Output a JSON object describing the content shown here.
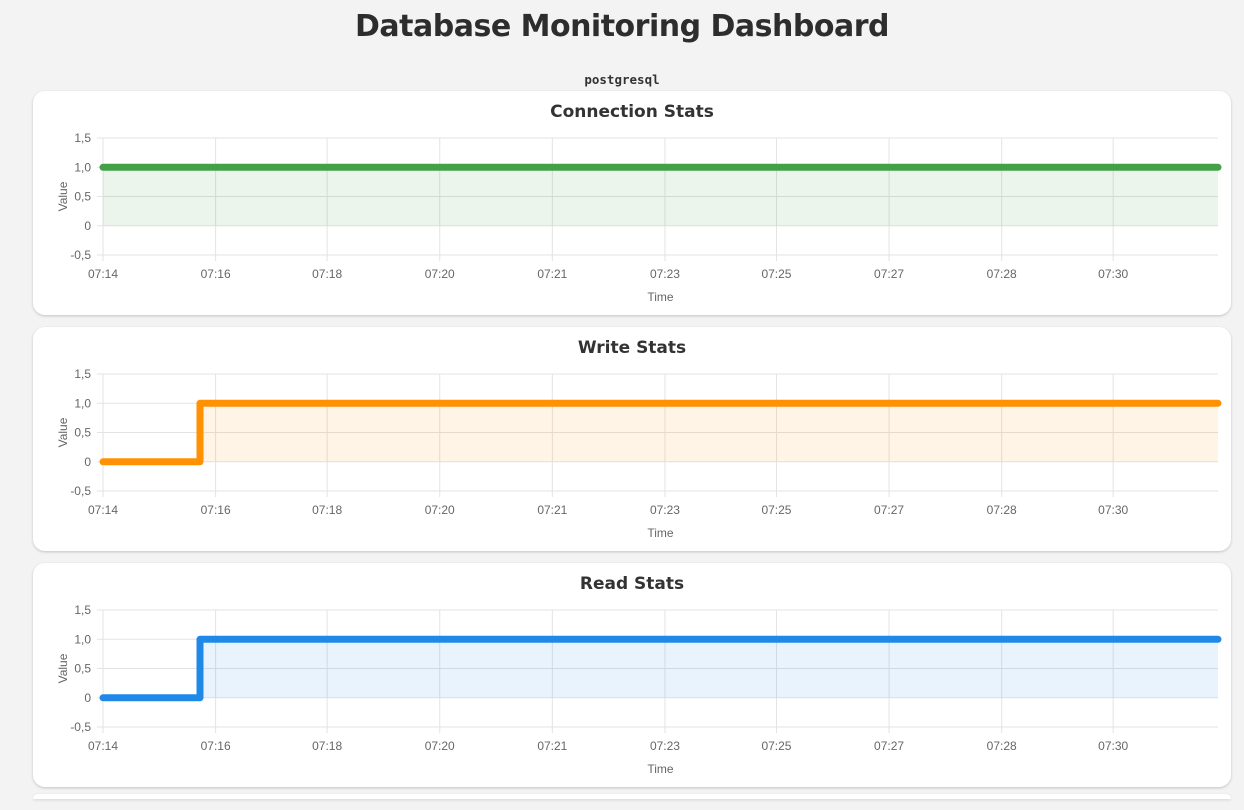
{
  "header": {
    "title": "Database Monitoring Dashboard",
    "legend_label": "postgresql"
  },
  "colors": {
    "page_bg": "#f3f3f3",
    "card_bg": "#ffffff",
    "grid": "#e3e3e3",
    "tick_text": "#666666",
    "heading_text": "#333333",
    "connection_line": "#43a047",
    "write_line": "#ff9102",
    "read_line": "#2089e8"
  },
  "chart_data": [
    {
      "type": "line",
      "title": "Connection Stats",
      "xlabel": "Time",
      "ylabel": "Value",
      "ylim": [
        -0.5,
        1.5
      ],
      "legend": "postgresql",
      "x_ticks": [
        {
          "label": "07:14",
          "pos": 0
        },
        {
          "label": "07:16",
          "pos": 0.101
        },
        {
          "label": "07:18",
          "pos": 0.201
        },
        {
          "label": "07:20",
          "pos": 0.302
        },
        {
          "label": "07:21",
          "pos": 0.403
        },
        {
          "label": "07:23",
          "pos": 0.504
        },
        {
          "label": "07:25",
          "pos": 0.604
        },
        {
          "label": "07:27",
          "pos": 0.705
        },
        {
          "label": "07:28",
          "pos": 0.806
        },
        {
          "label": "07:30",
          "pos": 0.906
        }
      ],
      "y_ticks": [
        {
          "label": "1,5",
          "value": 1.5
        },
        {
          "label": "1,0",
          "value": 1.0
        },
        {
          "label": "0,5",
          "value": 0.5
        },
        {
          "label": "0",
          "value": 0
        },
        {
          "label": "-0,5",
          "value": -0.5
        }
      ],
      "series": [
        {
          "name": "postgresql",
          "color": "#43a047",
          "fill_color": "rgba(67,160,71,0.10)",
          "points": [
            [
              0,
              1
            ],
            [
              1,
              1
            ]
          ]
        }
      ]
    },
    {
      "type": "line",
      "title": "Write Stats",
      "xlabel": "Time",
      "ylabel": "Value",
      "ylim": [
        -0.5,
        1.5
      ],
      "legend": "postgresql",
      "x_ticks": [
        {
          "label": "07:14",
          "pos": 0
        },
        {
          "label": "07:16",
          "pos": 0.101
        },
        {
          "label": "07:18",
          "pos": 0.201
        },
        {
          "label": "07:20",
          "pos": 0.302
        },
        {
          "label": "07:21",
          "pos": 0.403
        },
        {
          "label": "07:23",
          "pos": 0.504
        },
        {
          "label": "07:25",
          "pos": 0.604
        },
        {
          "label": "07:27",
          "pos": 0.705
        },
        {
          "label": "07:28",
          "pos": 0.806
        },
        {
          "label": "07:30",
          "pos": 0.906
        }
      ],
      "y_ticks": [
        {
          "label": "1,5",
          "value": 1.5
        },
        {
          "label": "1,0",
          "value": 1.0
        },
        {
          "label": "0,5",
          "value": 0.5
        },
        {
          "label": "0",
          "value": 0
        },
        {
          "label": "-0,5",
          "value": -0.5
        }
      ],
      "series": [
        {
          "name": "postgresql",
          "color": "#ff9102",
          "fill_color": "rgba(255,145,2,0.10)",
          "points": [
            [
              0,
              0
            ],
            [
              0.087,
              0
            ],
            [
              0.087,
              1
            ],
            [
              1,
              1
            ]
          ]
        }
      ]
    },
    {
      "type": "line",
      "title": "Read Stats",
      "xlabel": "Time",
      "ylabel": "Value",
      "ylim": [
        -0.5,
        1.5
      ],
      "legend": "postgresql",
      "x_ticks": [
        {
          "label": "07:14",
          "pos": 0
        },
        {
          "label": "07:16",
          "pos": 0.101
        },
        {
          "label": "07:18",
          "pos": 0.201
        },
        {
          "label": "07:20",
          "pos": 0.302
        },
        {
          "label": "07:21",
          "pos": 0.403
        },
        {
          "label": "07:23",
          "pos": 0.504
        },
        {
          "label": "07:25",
          "pos": 0.604
        },
        {
          "label": "07:27",
          "pos": 0.705
        },
        {
          "label": "07:28",
          "pos": 0.806
        },
        {
          "label": "07:30",
          "pos": 0.906
        }
      ],
      "y_ticks": [
        {
          "label": "1,5",
          "value": 1.5
        },
        {
          "label": "1,0",
          "value": 1.0
        },
        {
          "label": "0,5",
          "value": 0.5
        },
        {
          "label": "0",
          "value": 0
        },
        {
          "label": "-0,5",
          "value": -0.5
        }
      ],
      "series": [
        {
          "name": "postgresql",
          "color": "#2089e8",
          "fill_color": "rgba(32,137,232,0.10)",
          "points": [
            [
              0,
              0
            ],
            [
              0.087,
              0
            ],
            [
              0.087,
              1
            ],
            [
              1,
              1
            ]
          ]
        }
      ]
    }
  ]
}
